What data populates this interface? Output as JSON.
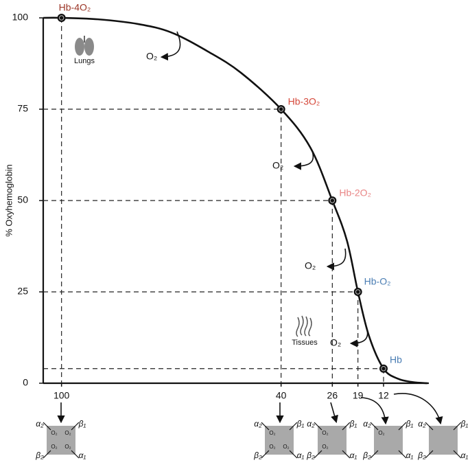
{
  "chart_data": {
    "type": "line",
    "ylabel": "% Oxyhemoglobin",
    "xlim": [
      105,
      0
    ],
    "ylim": [
      0,
      100
    ],
    "xticks": [
      100,
      40,
      26,
      19,
      12
    ],
    "yticks": [
      0,
      25,
      50,
      75,
      100
    ],
    "x": [
      105,
      100,
      90,
      79,
      70,
      60,
      51,
      40,
      32,
      26,
      22,
      19,
      16,
      12,
      8,
      4,
      0
    ],
    "series": [
      {
        "color": "#111111",
        "values": [
          100,
          100,
          99.6,
          98.3,
          96,
          90.8,
          85,
          75,
          64.5,
          50,
          39,
          25,
          13,
          4,
          1.2,
          0.3,
          0
        ]
      }
    ],
    "points": {
      "x": [
        100,
        40,
        26,
        19,
        12
      ],
      "values": [
        100,
        75,
        50,
        25,
        4
      ],
      "labels": [
        "Hb-4O₂",
        "Hb-3O₂",
        "Hb-2O₂",
        "Hb-O₂",
        "Hb"
      ],
      "label_colors": [
        "#9b3526",
        "#d5483a",
        "#e98585",
        "#4a7db3",
        "#4a7db3"
      ]
    },
    "annotations": {
      "lungs": "Lungs",
      "tissues": "Tissues",
      "released": "O₂"
    },
    "subunits": [
      "α₂",
      "β₁",
      "β₂",
      "α₁"
    ],
    "bound_o2": {
      "label": "O₂",
      "counts": [
        4,
        3,
        2,
        1,
        0
      ]
    }
  }
}
